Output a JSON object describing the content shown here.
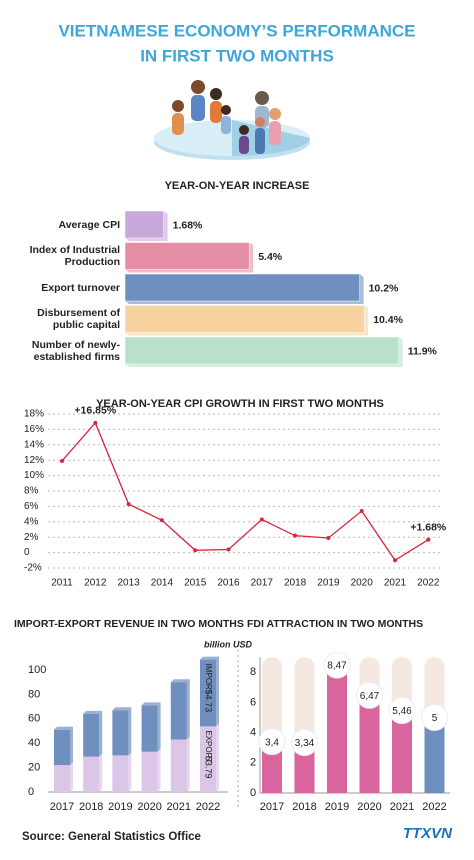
{
  "title": [
    "VIETNAMESE ECONOMY’S PERFORMANCE",
    "IN FIRST TWO MONTHS"
  ],
  "chart_data": [
    {
      "type": "hbar",
      "title": "YEAR-ON-YEAR INCREASE",
      "categories": [
        "Average CPI",
        "Index of Industrial Production",
        "Export turnover",
        "Disbursement of public capital",
        "Number of newly-established firms"
      ],
      "values": [
        1.68,
        5.4,
        10.2,
        10.4,
        11.9
      ],
      "value_labels": [
        "1.68%",
        "5.4%",
        "10.2%",
        "10.4%",
        "11.9%"
      ],
      "colors": [
        "#c9a9dc",
        "#e48fa6",
        "#6f8fbe",
        "#f7d3a1",
        "#b9e0c8"
      ]
    },
    {
      "type": "line",
      "title": "YEAR-ON-YEAR CPI GROWTH IN FIRST TWO MONTHS",
      "categories": [
        "2011",
        "2012",
        "2013",
        "2014",
        "2015",
        "2016",
        "2017",
        "2018",
        "2019",
        "2020",
        "2021",
        "2022"
      ],
      "values": [
        11.9,
        16.85,
        6.3,
        4.2,
        0.3,
        0.4,
        4.3,
        2.2,
        1.9,
        5.4,
        -1.0,
        1.68
      ],
      "value_labels": [
        null,
        "+16.85%",
        null,
        null,
        null,
        null,
        null,
        null,
        null,
        null,
        null,
        "+1.68%"
      ],
      "color": "#d7263d",
      "ylim": [
        -2,
        18
      ],
      "yticks": [
        {
          "value": -2,
          "label": "-2%"
        },
        {
          "value": 0,
          "label": "0"
        },
        {
          "value": 2,
          "label": "2%"
        },
        {
          "value": 4,
          "label": "4%"
        },
        {
          "value": 6,
          "label": "6%"
        },
        {
          "value": 8,
          "label": "8%"
        },
        {
          "value": 10,
          "label": "10%"
        },
        {
          "value": 12,
          "label": "12%"
        },
        {
          "value": 14,
          "label": "14%"
        },
        {
          "value": 16,
          "label": "16%"
        },
        {
          "value": 18,
          "label": "18%"
        }
      ],
      "grid": true
    },
    {
      "type": "stacked_bar",
      "title": "IMPORT-EXPORT REVENUE IN TWO MONTHS",
      "unit": "billion USD",
      "categories": [
        "2017",
        "2018",
        "2019",
        "2020",
        "2021",
        "2022"
      ],
      "series": [
        {
          "name": "EXPORT",
          "color": "#dcc6e8",
          "values": [
            22,
            29,
            30,
            33,
            43,
            53.79
          ],
          "value_labels": [
            null,
            null,
            null,
            null,
            null,
            "53.79"
          ]
        },
        {
          "name": "IMPORT",
          "color": "#6f8fbe",
          "values": [
            29,
            35,
            37,
            38,
            47,
            54.73
          ],
          "value_labels": [
            null,
            null,
            null,
            null,
            null,
            "54.73"
          ]
        }
      ],
      "ylim": [
        0,
        110
      ],
      "yticks": [
        0,
        20,
        40,
        60,
        80,
        100
      ]
    },
    {
      "type": "pill_bar",
      "title": "FDI ATTRACTION IN TWO MONTHS",
      "categories": [
        "2017",
        "2018",
        "2019",
        "2020",
        "2021",
        "2022"
      ],
      "values": [
        3.4,
        3.34,
        8.47,
        6.47,
        5.46,
        5
      ],
      "value_labels": [
        "3,4",
        "3,34",
        "8,47",
        "6,47",
        "5,46",
        "5"
      ],
      "colors": [
        "#d9649e",
        "#d9649e",
        "#d9649e",
        "#d9649e",
        "#d9649e",
        "#6f8fbe"
      ],
      "ylim": [
        0,
        9
      ],
      "yticks": [
        0,
        2,
        4,
        6,
        8
      ]
    }
  ],
  "source": "Source: General Statistics Office",
  "logo": "TTXVN"
}
